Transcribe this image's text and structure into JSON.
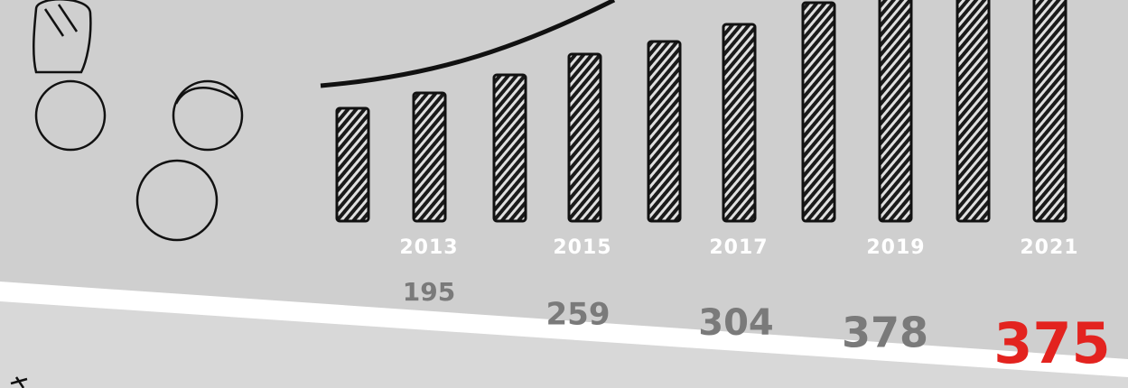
{
  "entries": [
    {
      "year": "2013",
      "value": 195
    },
    {
      "year": "2015",
      "value": 259
    },
    {
      "year": "2017",
      "value": 304
    },
    {
      "year": "2019",
      "value": 378
    },
    {
      "year": "2021",
      "value": 375
    }
  ],
  "highlight_color": "#e3231f"
}
